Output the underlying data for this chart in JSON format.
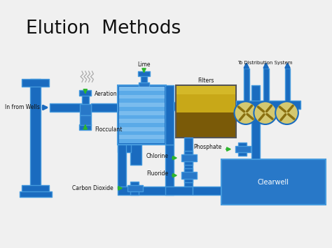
{
  "title": "Elution  Methods",
  "title_fontsize": 20,
  "title_color": "#111111",
  "bg_color": "#f0f0f0",
  "pipe_color": "#1a6bbf",
  "pipe_edge": "#4499dd",
  "fill_blue": "#2878c8",
  "fill_blue_light": "#5aaae8",
  "green_arrow": "#2db52d",
  "text_dark": "#111111",
  "text_white": "#ffffff",
  "labels": {
    "in_from_wells": "In from Wells",
    "aeration": "Aeration",
    "flocculant": "Flocculant",
    "carbon_dioxide": "Carbon Dioxide",
    "lime": "Lime",
    "filters": "Filters",
    "chlorine": "Chlorine",
    "fluoride": "Fluoride",
    "phosphate": "Phosphate",
    "clearwell": "Clearwell",
    "to_distribution": "To Distribution System"
  }
}
